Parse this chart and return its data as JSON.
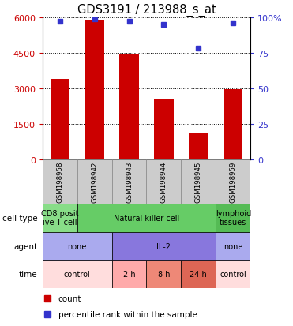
{
  "title": "GDS3191 / 213988_s_at",
  "samples": [
    "GSM198958",
    "GSM198942",
    "GSM198943",
    "GSM198944",
    "GSM198945",
    "GSM198959"
  ],
  "counts": [
    3400,
    5900,
    4450,
    2550,
    1100,
    2950
  ],
  "percentile_ranks": [
    97,
    99,
    97,
    95,
    78,
    96
  ],
  "ylim_left": [
    0,
    6000
  ],
  "ylim_right": [
    0,
    100
  ],
  "yticks_left": [
    0,
    1500,
    3000,
    4500,
    6000
  ],
  "yticks_right": [
    0,
    25,
    50,
    75,
    100
  ],
  "ytick_right_labels": [
    "0",
    "25",
    "50",
    "75",
    "100%"
  ],
  "bar_color": "#cc0000",
  "dot_color": "#3333cc",
  "bar_width": 0.55,
  "cell_types": [
    {
      "label": "CD8 posit\nive T cell",
      "span": [
        0,
        1
      ],
      "color": "#88dd88"
    },
    {
      "label": "Natural killer cell",
      "span": [
        1,
        5
      ],
      "color": "#66cc66"
    },
    {
      "label": "lymphoid\ntissues",
      "span": [
        5,
        6
      ],
      "color": "#55bb55"
    }
  ],
  "agents": [
    {
      "label": "none",
      "span": [
        0,
        2
      ],
      "color": "#aaaaee"
    },
    {
      "label": "IL-2",
      "span": [
        2,
        5
      ],
      "color": "#8877dd"
    },
    {
      "label": "none",
      "span": [
        5,
        6
      ],
      "color": "#aaaaee"
    }
  ],
  "times": [
    {
      "label": "control",
      "span": [
        0,
        2
      ],
      "color": "#ffdddd"
    },
    {
      "label": "2 h",
      "span": [
        2,
        3
      ],
      "color": "#ffaaaa"
    },
    {
      "label": "8 h",
      "span": [
        3,
        4
      ],
      "color": "#ee8877"
    },
    {
      "label": "24 h",
      "span": [
        4,
        5
      ],
      "color": "#dd6655"
    },
    {
      "label": "control",
      "span": [
        5,
        6
      ],
      "color": "#ffdddd"
    }
  ],
  "row_labels": [
    "cell type",
    "agent",
    "time"
  ],
  "legend_items": [
    {
      "label": "count",
      "color": "#cc0000"
    },
    {
      "label": "percentile rank within the sample",
      "color": "#3333cc"
    }
  ],
  "bg_color": "#ffffff",
  "tick_color_left": "#cc0000",
  "tick_color_right": "#3333cc",
  "sample_box_color": "#cccccc",
  "sample_box_edge": "#888888"
}
